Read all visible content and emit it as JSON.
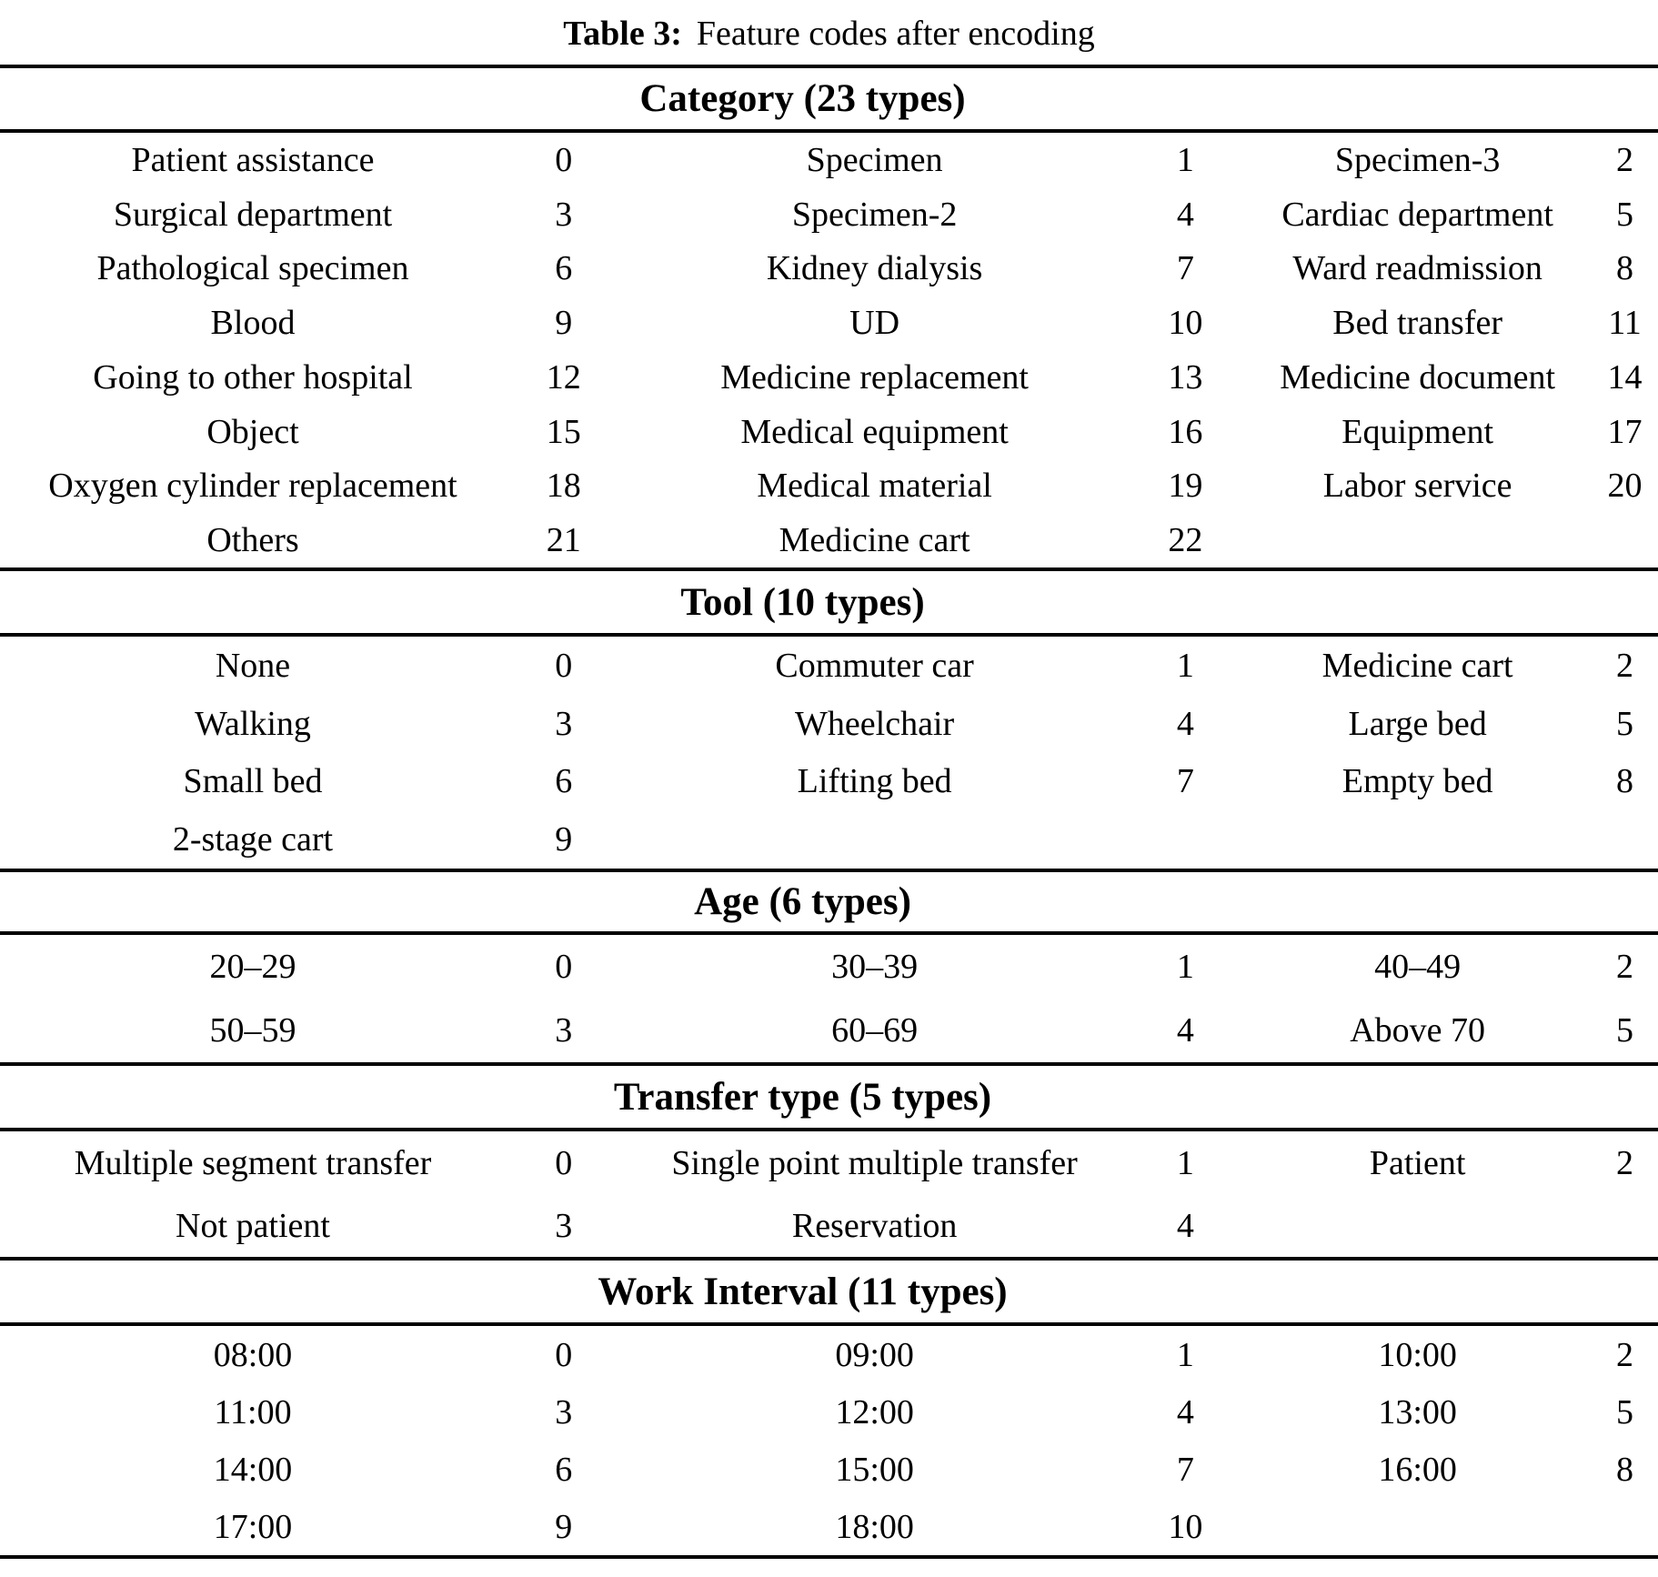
{
  "title": {
    "label": "Table 3:",
    "caption": "Feature codes after encoding"
  },
  "sections": [
    {
      "header": "Category (23 types)",
      "rows": [
        [
          [
            "Patient assistance",
            "0"
          ],
          [
            "Specimen",
            "1"
          ],
          [
            "Specimen-3",
            "2"
          ]
        ],
        [
          [
            "Surgical department",
            "3"
          ],
          [
            "Specimen-2",
            "4"
          ],
          [
            "Cardiac department",
            "5"
          ]
        ],
        [
          [
            "Pathological specimen",
            "6"
          ],
          [
            "Kidney dialysis",
            "7"
          ],
          [
            "Ward readmission",
            "8"
          ]
        ],
        [
          [
            "Blood",
            "9"
          ],
          [
            "UD",
            "10"
          ],
          [
            "Bed transfer",
            "11"
          ]
        ],
        [
          [
            "Going to other hospital",
            "12"
          ],
          [
            "Medicine replacement",
            "13"
          ],
          [
            "Medicine document",
            "14"
          ]
        ],
        [
          [
            "Object",
            "15"
          ],
          [
            "Medical equipment",
            "16"
          ],
          [
            "Equipment",
            "17"
          ]
        ],
        [
          [
            "Oxygen cylinder replacement",
            "18"
          ],
          [
            "Medical material",
            "19"
          ],
          [
            "Labor service",
            "20"
          ]
        ],
        [
          [
            "Others",
            "21"
          ],
          [
            "Medicine cart",
            "22"
          ],
          [
            "",
            ""
          ]
        ]
      ]
    },
    {
      "header": "Tool (10 types)",
      "rows": [
        [
          [
            "None",
            "0"
          ],
          [
            "Commuter car",
            "1"
          ],
          [
            "Medicine cart",
            "2"
          ]
        ],
        [
          [
            "Walking",
            "3"
          ],
          [
            "Wheelchair",
            "4"
          ],
          [
            "Large bed",
            "5"
          ]
        ],
        [
          [
            "Small bed",
            "6"
          ],
          [
            "Lifting bed",
            "7"
          ],
          [
            "Empty bed",
            "8"
          ]
        ],
        [
          [
            "2-stage cart",
            "9"
          ],
          [
            "",
            ""
          ],
          [
            "",
            ""
          ]
        ]
      ]
    },
    {
      "header": "Age (6 types)",
      "rows": [
        [
          [
            "20–29",
            "0"
          ],
          [
            "30–39",
            "1"
          ],
          [
            "40–49",
            "2"
          ]
        ],
        [
          [
            "50–59",
            "3"
          ],
          [
            "60–69",
            "4"
          ],
          [
            "Above 70",
            "5"
          ]
        ]
      ]
    },
    {
      "header": "Transfer type (5 types)",
      "rows": [
        [
          [
            "Multiple segment transfer",
            "0"
          ],
          [
            "Single point multiple transfer",
            "1"
          ],
          [
            "Patient",
            "2"
          ]
        ],
        [
          [
            "Not patient",
            "3"
          ],
          [
            "Reservation",
            "4"
          ],
          [
            "",
            ""
          ]
        ]
      ]
    },
    {
      "header": "Work Interval (11 types)",
      "rows": [
        [
          [
            "08:00",
            "0"
          ],
          [
            "09:00",
            "1"
          ],
          [
            "10:00",
            "2"
          ]
        ],
        [
          [
            "11:00",
            "3"
          ],
          [
            "12:00",
            "4"
          ],
          [
            "13:00",
            "5"
          ]
        ],
        [
          [
            "14:00",
            "6"
          ],
          [
            "15:00",
            "7"
          ],
          [
            "16:00",
            "8"
          ]
        ],
        [
          [
            "17:00",
            "9"
          ],
          [
            "18:00",
            "10"
          ],
          [
            "",
            ""
          ]
        ]
      ]
    }
  ]
}
